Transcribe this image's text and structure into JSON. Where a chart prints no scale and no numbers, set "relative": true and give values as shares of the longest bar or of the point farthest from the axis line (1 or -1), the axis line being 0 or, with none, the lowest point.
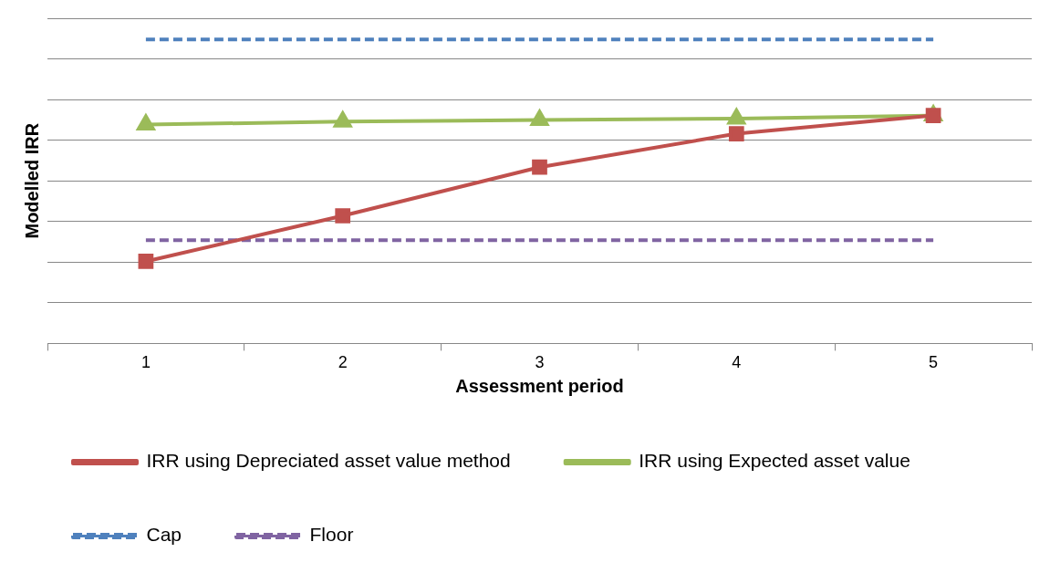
{
  "chart_data": {
    "type": "line",
    "xlabel": "Assessment period",
    "ylabel": "Modelled IRR",
    "categories": [
      "1",
      "2",
      "3",
      "4",
      "5"
    ],
    "relative": true,
    "grid": "y",
    "legend": "bottom",
    "series": [
      {
        "name": "IRR using Depreciated asset value method",
        "color": "#c0504d",
        "marker": "square",
        "line_style": "solid",
        "values": [
          0.27,
          0.42,
          0.58,
          0.69,
          0.75
        ]
      },
      {
        "name": "IRR using Expected asset value",
        "color": "#9bbb59",
        "marker": "triangle",
        "line_style": "solid",
        "values": [
          0.72,
          0.73,
          0.735,
          0.74,
          0.75
        ]
      },
      {
        "name": "Cap",
        "color": "#4f81bd",
        "marker": "none",
        "line_style": "dashed",
        "values": [
          1,
          1,
          1,
          1,
          1
        ]
      },
      {
        "name": "Floor",
        "color": "#8064a2",
        "marker": "none",
        "line_style": "dashed",
        "values": [
          0.34,
          0.34,
          0.34,
          0.34,
          0.34
        ]
      }
    ]
  }
}
